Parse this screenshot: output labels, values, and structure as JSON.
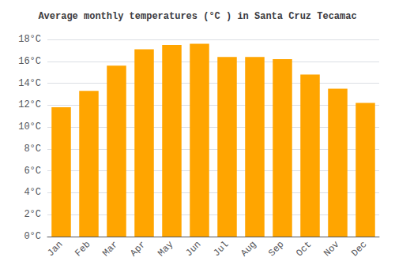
{
  "chart_data": {
    "type": "bar",
    "title": "Average monthly temperatures (°C ) in Santa Cruz Tecamac",
    "categories": [
      "Jan",
      "Feb",
      "Mar",
      "Apr",
      "May",
      "Jun",
      "Jul",
      "Aug",
      "Sep",
      "Oct",
      "Nov",
      "Dec"
    ],
    "values": [
      11.8,
      13.3,
      15.6,
      17.1,
      17.5,
      17.6,
      16.4,
      16.4,
      16.2,
      14.8,
      13.5,
      12.2
    ],
    "color": "#FFA500",
    "ylim": [
      0,
      18
    ],
    "yticks": [
      {
        "value": 0,
        "label": "0°C"
      },
      {
        "value": 2,
        "label": "2°C"
      },
      {
        "value": 4,
        "label": "4°C"
      },
      {
        "value": 6,
        "label": "6°C"
      },
      {
        "value": 8,
        "label": "8°C"
      },
      {
        "value": 10,
        "label": "10°C"
      },
      {
        "value": 12,
        "label": "12°C"
      },
      {
        "value": 14,
        "label": "14°C"
      },
      {
        "value": 16,
        "label": "16°C"
      },
      {
        "value": 18,
        "label": "18°C"
      }
    ],
    "grid": true
  }
}
